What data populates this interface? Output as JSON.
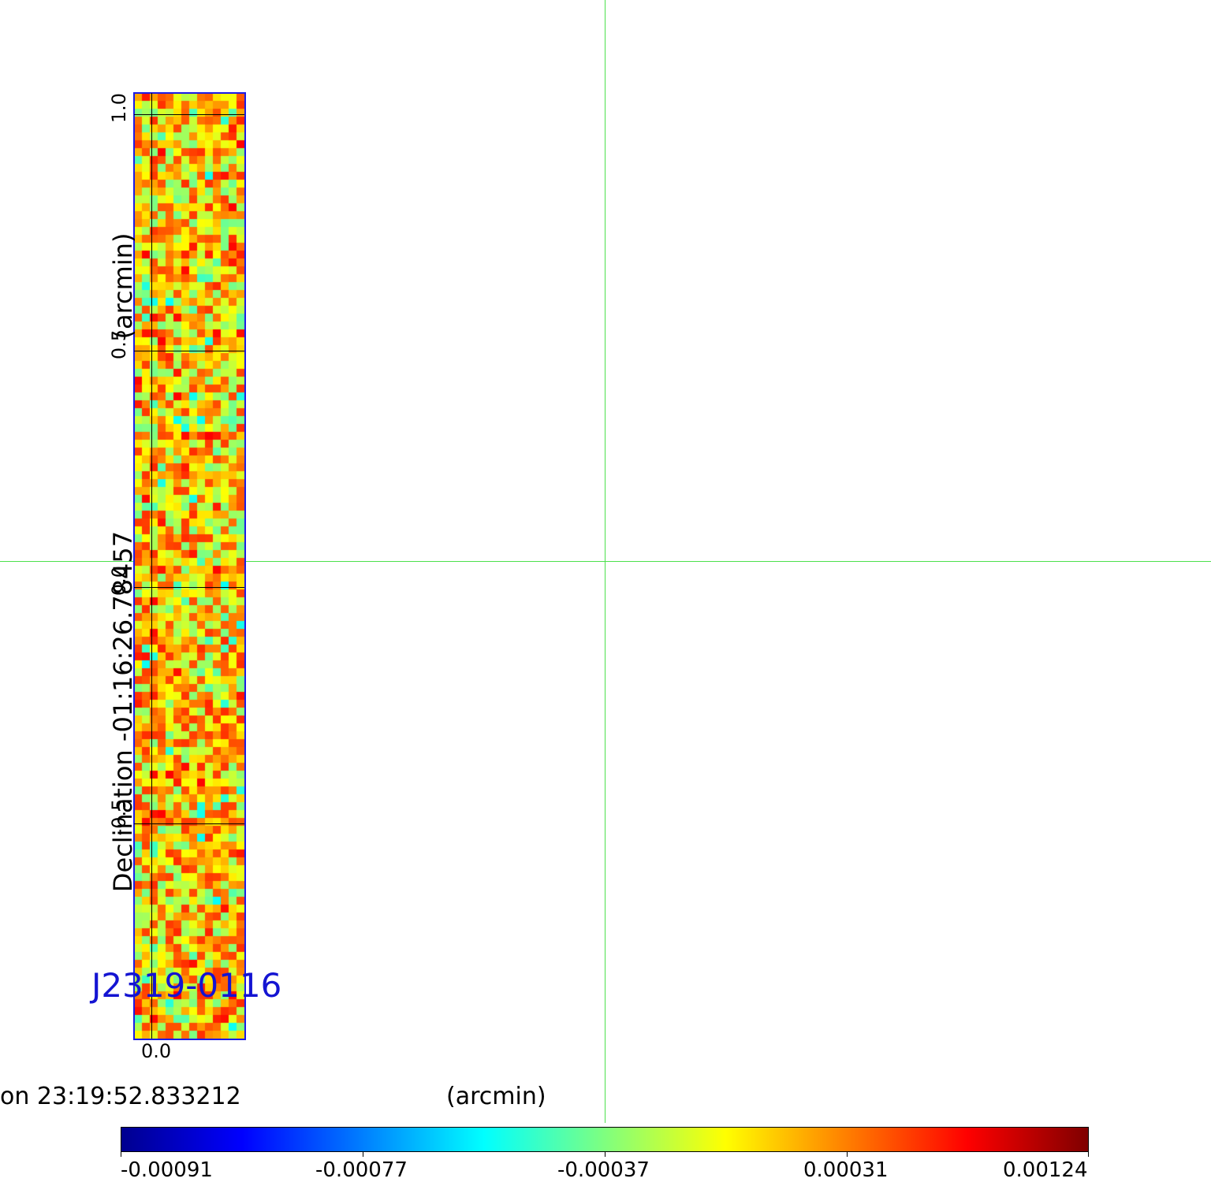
{
  "source_name": "J2319-0116",
  "axes": {
    "y_label": "Declination  -01:16:26.78457",
    "y_unit_label": "(arcmin)",
    "x_label": "on  23:19:52.833212",
    "x_unit_label": "(arcmin)",
    "y_ticks": [
      "1.0",
      "0.5",
      "0.0",
      "-0.5"
    ],
    "x_ticks": [
      "0.0"
    ]
  },
  "colorbar": {
    "colormap": "jet",
    "tick_labels": [
      "-0.00091",
      "-0.00077",
      "-0.00037",
      "0.00031",
      "0.00124"
    ]
  },
  "colors": {
    "frame": "#1a1ae6",
    "crosshair": "#4ce04c",
    "source_label": "#1414d2"
  },
  "image_grid": {
    "columns": 14,
    "rows": 120
  }
}
